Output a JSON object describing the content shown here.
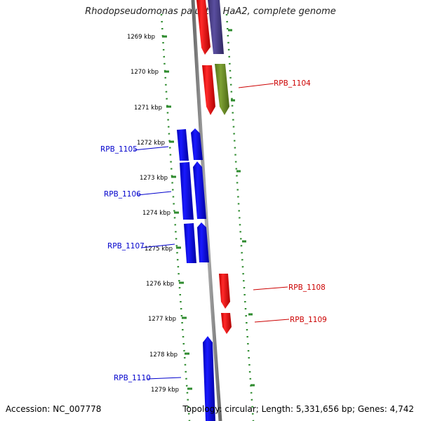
{
  "title": "Rhodopseudomonas palustris HaA2, complete genome",
  "footer": {
    "accession": "Accession: NC_007778",
    "summary": "Topology: circular; Length: 5,331,656 bp; Genes: 4,742"
  },
  "ticks": [
    "1269 kbp",
    "1270 kbp",
    "1271 kbp",
    "1272 kbp",
    "1273 kbp",
    "1274 kbp",
    "1275 kbp",
    "1276 kbp",
    "1277 kbp",
    "1278 kbp",
    "1279 kbp"
  ],
  "colors": {
    "forward": "#ff0000",
    "reverse": "#0000ff",
    "purple": "#4b3f8c",
    "olive": "#6b8e23",
    "backbone": "#808080",
    "dots": "#2e8b2e"
  },
  "features": [
    {
      "id": "f1",
      "track": "fwd1",
      "color": "red",
      "strand": "down"
    },
    {
      "id": "f2",
      "track": "fwd2",
      "color": "purple",
      "strand": "down"
    },
    {
      "id": "f3",
      "track": "fwd1",
      "color": "red",
      "strand": "down"
    },
    {
      "id": "f4",
      "track": "fwd2",
      "color": "olive",
      "strand": "down",
      "label": "RPB_1104"
    },
    {
      "id": "f5",
      "track": "rev1",
      "color": "blue",
      "strand": "none",
      "label": "RPB_1105"
    },
    {
      "id": "f6",
      "track": "rev2",
      "color": "blue",
      "strand": "up"
    },
    {
      "id": "f7",
      "track": "rev1",
      "color": "blue",
      "strand": "none",
      "label": "RPB_1106"
    },
    {
      "id": "f8",
      "track": "rev2",
      "color": "blue",
      "strand": "up"
    },
    {
      "id": "f9",
      "track": "rev1",
      "color": "blue",
      "strand": "none",
      "label": "RPB_1107"
    },
    {
      "id": "f10",
      "track": "rev2",
      "color": "blue",
      "strand": "up"
    },
    {
      "id": "f11",
      "track": "fwd1",
      "color": "red",
      "strand": "down",
      "label": "RPB_1108"
    },
    {
      "id": "f12",
      "track": "fwd1",
      "color": "red",
      "strand": "down",
      "label": "RPB_1109"
    },
    {
      "id": "f13",
      "track": "rev2",
      "color": "blue",
      "strand": "up",
      "label": "RPB_1110"
    }
  ]
}
